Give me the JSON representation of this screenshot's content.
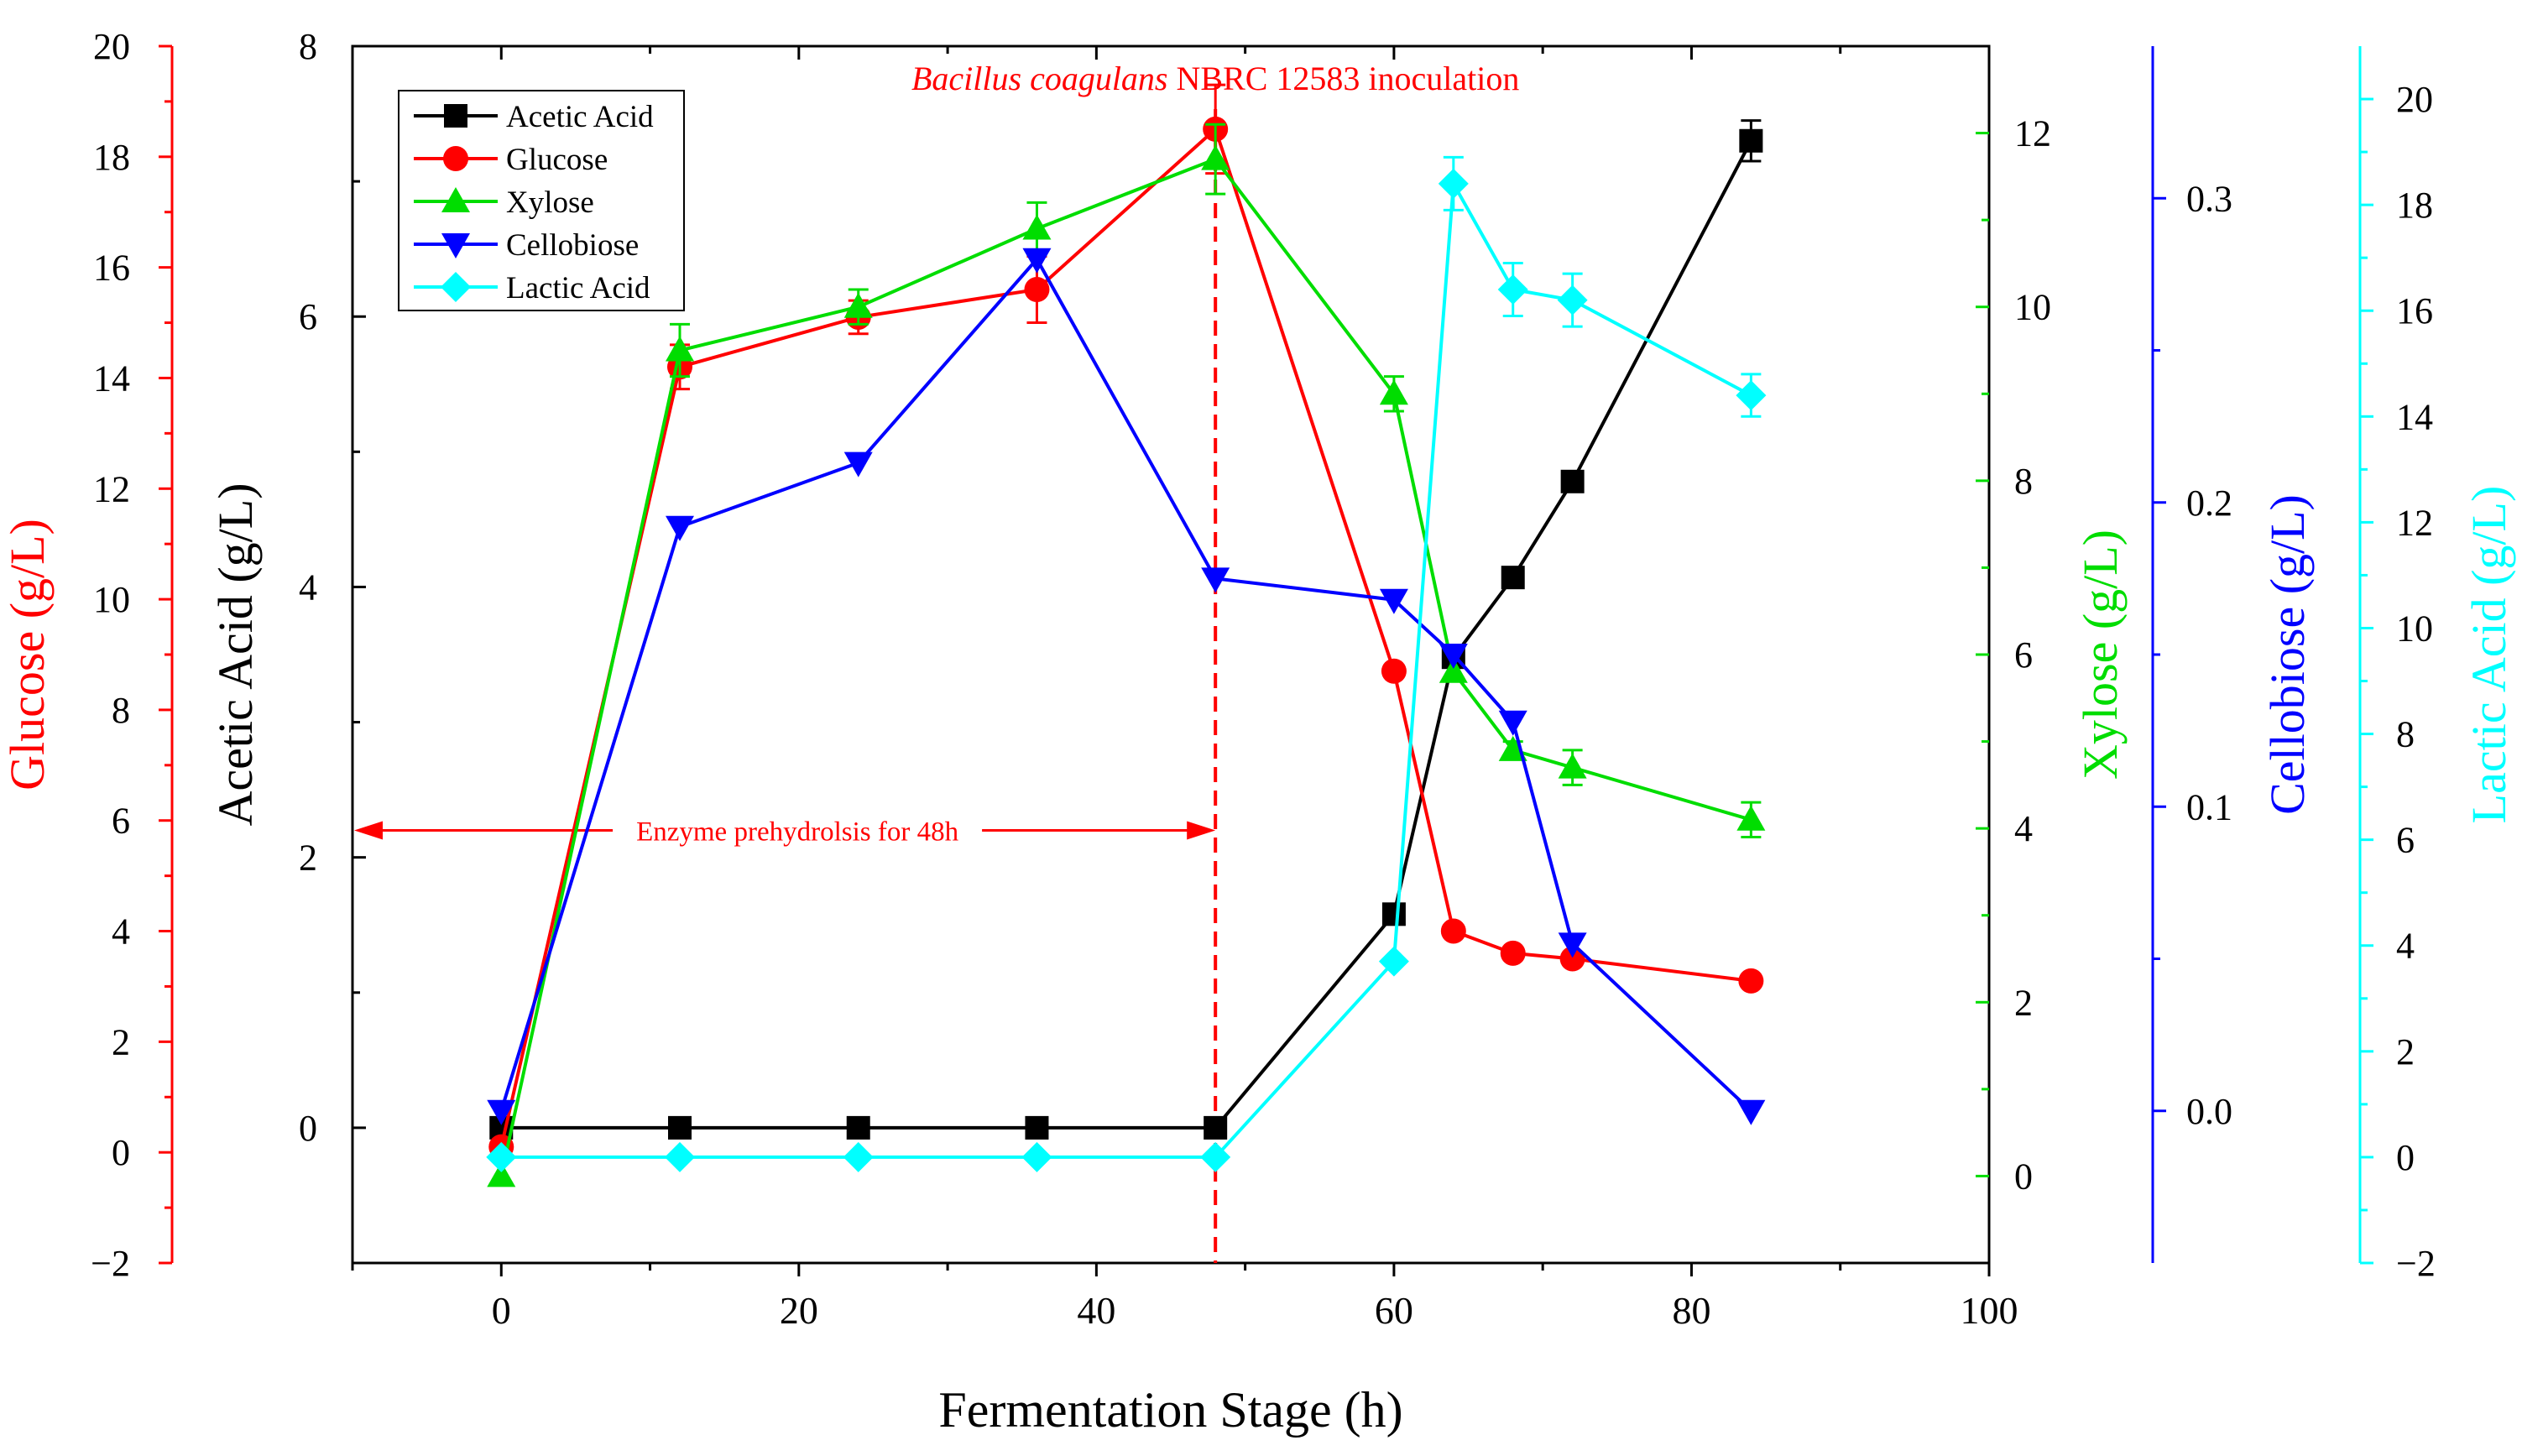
{
  "chart_data": {
    "type": "line",
    "xlabel": "Fermentation Stage (h)",
    "xlim": [
      -10,
      100
    ],
    "xticks": [
      0,
      20,
      40,
      60,
      80,
      100
    ],
    "x": [
      0,
      12,
      24,
      36,
      48,
      60,
      64,
      68,
      72,
      84
    ],
    "axes": {
      "glucose": {
        "label": "Glucose (g/L)",
        "color": "#ff0000",
        "ylim": [
          -2,
          20
        ],
        "ticks": [
          -2,
          0,
          2,
          4,
          6,
          8,
          10,
          12,
          14,
          16,
          18,
          20
        ],
        "tick_labels": [
          "−2",
          "0",
          "2",
          "4",
          "6",
          "8",
          "10",
          "12",
          "14",
          "16",
          "18",
          "20"
        ]
      },
      "acetic": {
        "label": "Acetic Acid (g/L)",
        "color": "#000000",
        "ylim": [
          -1,
          8
        ],
        "ticks": [
          0,
          2,
          4,
          6,
          8
        ],
        "tick_labels": [
          "0",
          "2",
          "4",
          "6",
          "8"
        ]
      },
      "xylose": {
        "label": "Xylose (g/L)",
        "color": "#00dd00",
        "ylim": [
          -1,
          13
        ],
        "ticks": [
          0,
          2,
          4,
          6,
          8,
          10,
          12
        ],
        "tick_labels": [
          "0",
          "2",
          "4",
          "6",
          "8",
          "10",
          "12"
        ]
      },
      "cellobiose": {
        "label": "Cellobiose (g/L)",
        "color": "#0000ff",
        "ylim": [
          -0.05,
          0.35
        ],
        "ticks": [
          0.0,
          0.1,
          0.2,
          0.3
        ],
        "tick_labels": [
          "0.0",
          "0.1",
          "0.2",
          "0.3"
        ]
      },
      "lactic": {
        "label": "Lactic Acid (g/L)",
        "color": "#00ffff",
        "ylim": [
          -2,
          21
        ],
        "ticks": [
          -2,
          0,
          2,
          4,
          6,
          8,
          10,
          12,
          14,
          16,
          18,
          20
        ],
        "tick_labels": [
          "−2",
          "0",
          "2",
          "4",
          "6",
          "8",
          "10",
          "12",
          "14",
          "16",
          "18",
          "20"
        ]
      }
    },
    "series": [
      {
        "name": "Acetic Acid",
        "axis": "acetic",
        "color": "#000000",
        "marker": "square",
        "values": [
          0.0,
          0.0,
          0.0,
          0.0,
          0.0,
          1.58,
          3.48,
          4.07,
          4.78,
          7.3
        ],
        "errors": [
          0,
          0,
          0,
          0,
          0,
          0,
          0,
          0,
          0,
          0.15
        ]
      },
      {
        "name": "Glucose",
        "axis": "glucose",
        "color": "#ff0000",
        "marker": "circle",
        "values": [
          0.1,
          14.2,
          15.1,
          15.6,
          18.5,
          8.7,
          4.0,
          3.6,
          3.5,
          3.1
        ],
        "errors": [
          0,
          0.4,
          0.3,
          0.6,
          0.8,
          0,
          0,
          0,
          0,
          0
        ]
      },
      {
        "name": "Xylose",
        "axis": "xylose",
        "color": "#00dd00",
        "marker": "triangle-up",
        "values": [
          0.0,
          9.5,
          10.0,
          10.9,
          11.7,
          9.0,
          5.8,
          4.9,
          4.7,
          4.1
        ],
        "errors": [
          0,
          0.3,
          0.2,
          0.3,
          0.4,
          0.2,
          0,
          0.1,
          0.2,
          0.2
        ]
      },
      {
        "name": "Cellobiose",
        "axis": "cellobiose",
        "color": "#0000ff",
        "marker": "triangle-down",
        "values": [
          0.0,
          0.192,
          0.213,
          0.28,
          0.175,
          0.168,
          0.15,
          0.128,
          0.055,
          0.0
        ],
        "errors": [
          0,
          0,
          0,
          0,
          0,
          0,
          0,
          0,
          0,
          0
        ]
      },
      {
        "name": "Lactic Acid",
        "axis": "lactic",
        "color": "#00ffff",
        "marker": "diamond",
        "values": [
          0.0,
          0.0,
          0.0,
          0.0,
          0.0,
          3.7,
          18.4,
          16.4,
          16.2,
          14.4
        ],
        "errors": [
          0,
          0,
          0,
          0,
          0,
          0,
          0.5,
          0.5,
          0.5,
          0.4
        ]
      }
    ],
    "annotations": {
      "inoculation_organism": "Bacillus coagulans",
      "inoculation_rest": " NBRC 12583 inoculation",
      "inoculation_x": 48,
      "prehydrolysis_text": "Enzyme prehydrolsis for 48h",
      "prehydrolysis_range": [
        -10,
        48
      ],
      "prehydrolysis_y_acetic": 2.2,
      "color": "#ff0000"
    },
    "legend_position": "top-left"
  }
}
